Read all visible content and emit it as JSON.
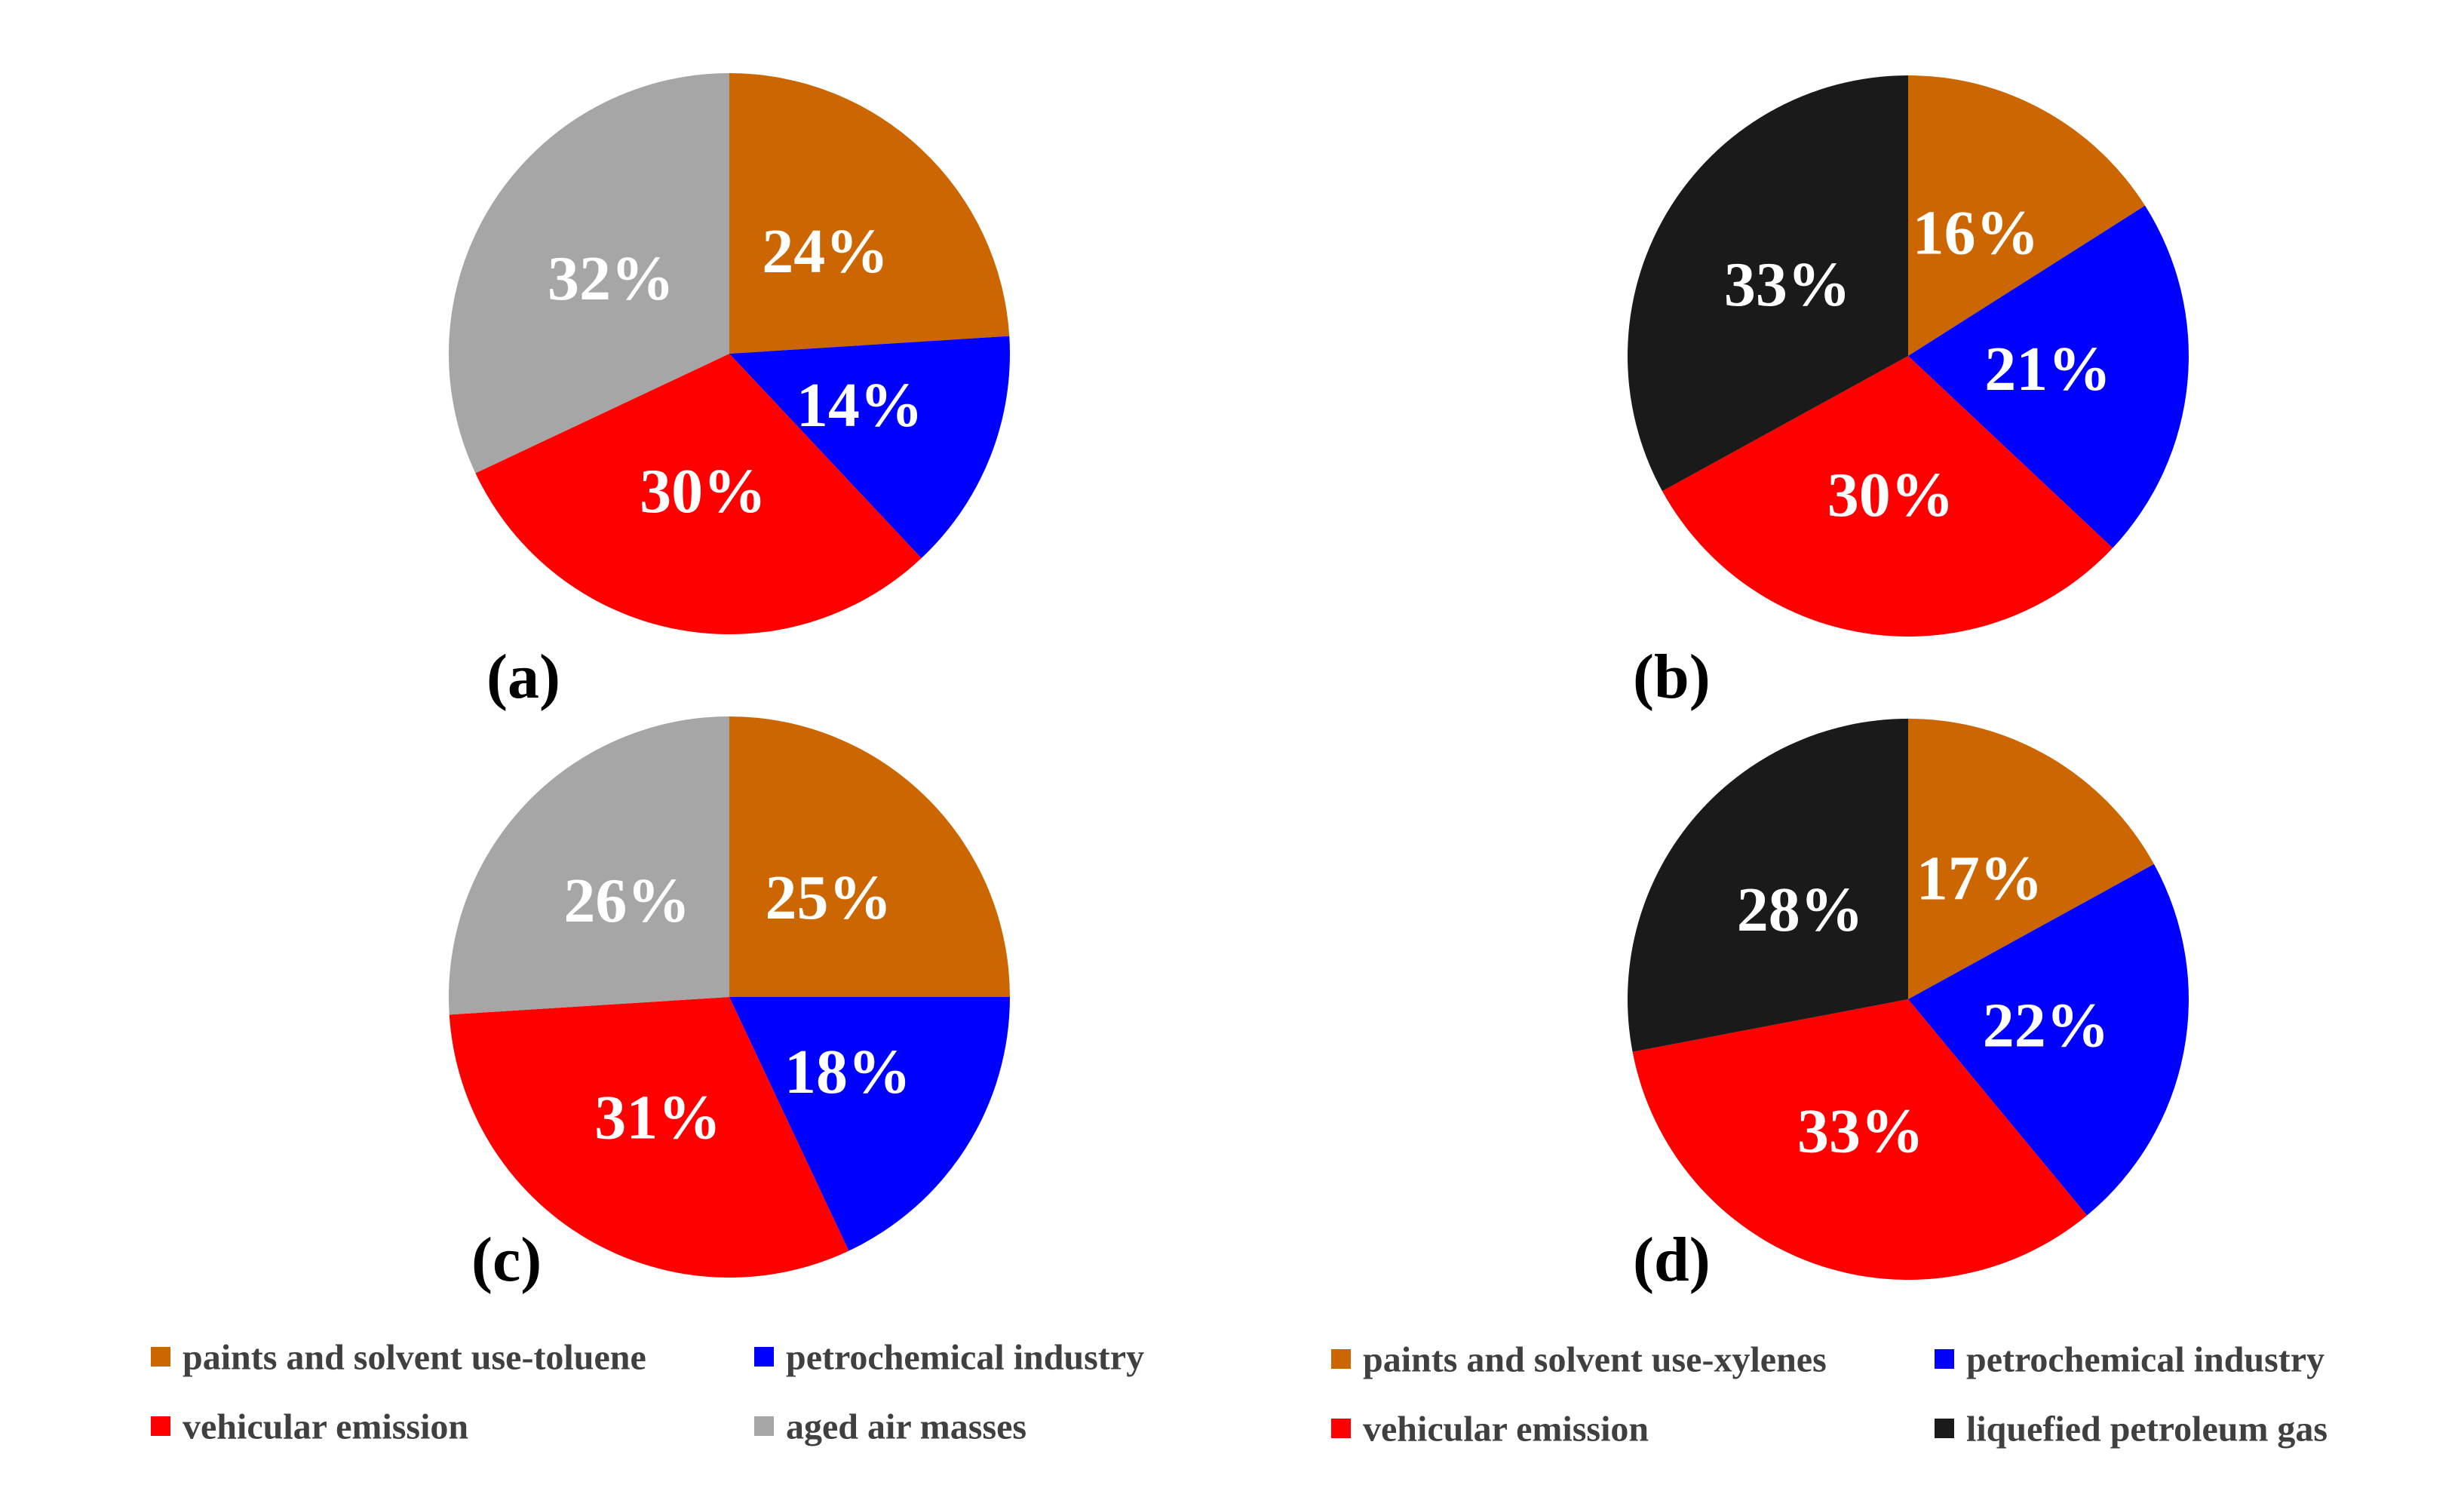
{
  "chart_data": [
    {
      "type": "pie",
      "panel_label": "(a)",
      "slices": [
        {
          "name": "paints and solvent use-toluene",
          "value": 24,
          "label": "24%",
          "color": "#cc6600"
        },
        {
          "name": "petrochemical industry",
          "value": 14,
          "label": "14%",
          "color": "#0000ff"
        },
        {
          "name": "vehicular emission",
          "value": 30,
          "label": "30%",
          "color": "#ff0000"
        },
        {
          "name": "aged air masses",
          "value": 32,
          "label": "32%",
          "color": "#a6a6a6"
        }
      ]
    },
    {
      "type": "pie",
      "panel_label": "(b)",
      "slices": [
        {
          "name": "paints and solvent use-xylenes",
          "value": 16,
          "label": "16%",
          "color": "#cc6600"
        },
        {
          "name": "petrochemical industry",
          "value": 21,
          "label": "21%",
          "color": "#0000ff"
        },
        {
          "name": "vehicular emission",
          "value": 30,
          "label": "30%",
          "color": "#ff0000"
        },
        {
          "name": "liquefied petroleum gas",
          "value": 33,
          "label": "33%",
          "color": "#1a1a1a"
        }
      ]
    },
    {
      "type": "pie",
      "panel_label": "(c)",
      "slices": [
        {
          "name": "paints and solvent use-toluene",
          "value": 25,
          "label": "25%",
          "color": "#cc6600"
        },
        {
          "name": "petrochemical industry",
          "value": 18,
          "label": "18%",
          "color": "#0000ff"
        },
        {
          "name": "vehicular emission",
          "value": 31,
          "label": "31%",
          "color": "#ff0000"
        },
        {
          "name": "aged air masses",
          "value": 26,
          "label": "26%",
          "color": "#a6a6a6"
        }
      ]
    },
    {
      "type": "pie",
      "panel_label": "(d)",
      "slices": [
        {
          "name": "paints and solvent use-xylenes",
          "value": 17,
          "label": "17%",
          "color": "#cc6600"
        },
        {
          "name": "petrochemical industry",
          "value": 22,
          "label": "22%",
          "color": "#0000ff"
        },
        {
          "name": "vehicular emission",
          "value": 33,
          "label": "33%",
          "color": "#ff0000"
        },
        {
          "name": "liquefied petroleum gas",
          "value": 28,
          "label": "28%",
          "color": "#1a1a1a"
        }
      ]
    }
  ],
  "legends": [
    {
      "items": [
        {
          "label": "paints and solvent use-toluene",
          "color": "#cc6600"
        },
        {
          "label": "petrochemical industry",
          "color": "#0000ff"
        },
        {
          "label": "vehicular emission",
          "color": "#ff0000"
        },
        {
          "label": "aged air masses",
          "color": "#a6a6a6"
        }
      ]
    },
    {
      "items": [
        {
          "label": "paints and solvent use-xylenes",
          "color": "#cc6600"
        },
        {
          "label": "petrochemical industry",
          "color": "#0000ff"
        },
        {
          "label": "vehicular emission",
          "color": "#ff0000"
        },
        {
          "label": "liquefied petroleum gas",
          "color": "#1a1a1a"
        }
      ]
    }
  ]
}
